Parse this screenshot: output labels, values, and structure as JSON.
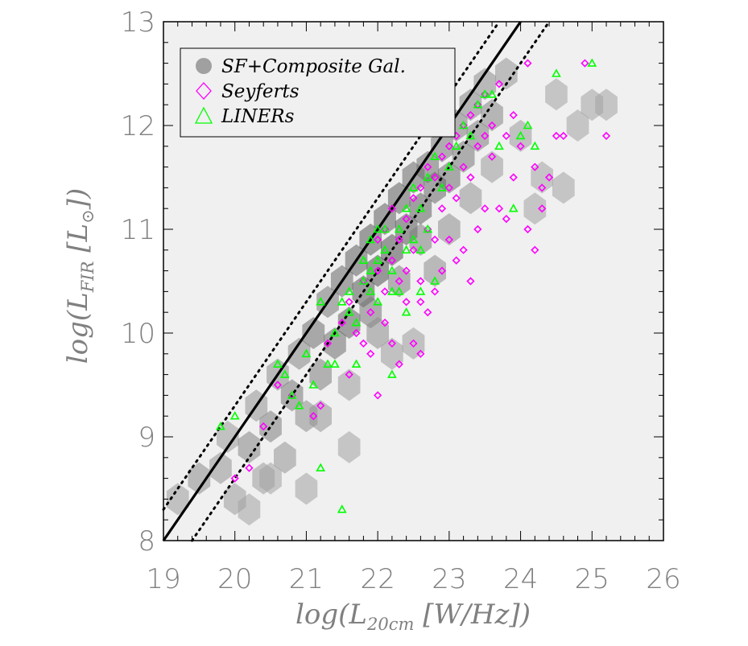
{
  "chart_data": {
    "type": "scatter",
    "xlabel": {
      "main": "log(L",
      "sub": "20cm",
      "rest": " [W/Hz])"
    },
    "ylabel": {
      "main": "log(L",
      "sub": "FIR",
      "rest": " [L",
      "sym": "⊙",
      "end": "])"
    },
    "xlim": [
      19,
      26
    ],
    "ylim": [
      8,
      13
    ],
    "x_ticks": [
      "19",
      "20",
      "21",
      "22",
      "23",
      "24",
      "25",
      "26"
    ],
    "y_ticks": [
      "8",
      "9",
      "10",
      "11",
      "12",
      "13"
    ],
    "grid": false,
    "legend_position": "top-left",
    "legend": [
      {
        "label": "SF+Composite Gal.",
        "marker": "filled-circle",
        "color": "#a0a0a0"
      },
      {
        "label": "Seyferts",
        "marker": "open-diamond",
        "color": "#ff00ff"
      },
      {
        "label": "LINERs",
        "marker": "open-triangle",
        "color": "#00ff00"
      }
    ],
    "fit_line": {
      "slope": 1.0,
      "intercept": -11.0,
      "style": "solid",
      "color": "#000000"
    },
    "scatter_lines": [
      {
        "slope": 1.0,
        "intercept": -10.7,
        "style": "dotted"
      },
      {
        "slope": 1.0,
        "intercept": -11.4,
        "style": "dotted"
      }
    ],
    "density_cells": [
      [
        19.2,
        8.4,
        0.3
      ],
      [
        19.5,
        8.6,
        0.4
      ],
      [
        19.8,
        8.7,
        0.35
      ],
      [
        19.9,
        9.0,
        0.3
      ],
      [
        20.0,
        8.4,
        0.3
      ],
      [
        20.2,
        8.9,
        0.45
      ],
      [
        20.3,
        9.3,
        0.35
      ],
      [
        20.4,
        8.6,
        0.3
      ],
      [
        20.5,
        9.1,
        0.5
      ],
      [
        20.6,
        9.6,
        0.4
      ],
      [
        20.7,
        8.8,
        0.35
      ],
      [
        20.8,
        9.4,
        0.55
      ],
      [
        20.9,
        9.8,
        0.45
      ],
      [
        21.0,
        9.2,
        0.4
      ],
      [
        21.1,
        10.0,
        0.6
      ],
      [
        21.2,
        9.6,
        0.5
      ],
      [
        21.3,
        10.3,
        0.55
      ],
      [
        21.4,
        9.9,
        0.6
      ],
      [
        21.5,
        10.5,
        0.65
      ],
      [
        21.6,
        10.1,
        0.7
      ],
      [
        21.7,
        10.7,
        0.7
      ],
      [
        21.8,
        10.4,
        0.75
      ],
      [
        21.9,
        10.9,
        0.75
      ],
      [
        22.0,
        10.6,
        0.8
      ],
      [
        22.1,
        11.1,
        0.7
      ],
      [
        22.2,
        10.8,
        0.8
      ],
      [
        22.3,
        11.3,
        0.7
      ],
      [
        22.4,
        11.0,
        0.75
      ],
      [
        22.5,
        11.5,
        0.65
      ],
      [
        22.6,
        11.2,
        0.7
      ],
      [
        22.7,
        11.6,
        0.6
      ],
      [
        22.8,
        11.4,
        0.65
      ],
      [
        22.9,
        11.8,
        0.55
      ],
      [
        23.0,
        11.5,
        0.6
      ],
      [
        23.1,
        12.0,
        0.5
      ],
      [
        23.2,
        11.7,
        0.55
      ],
      [
        23.3,
        12.2,
        0.45
      ],
      [
        23.4,
        11.9,
        0.5
      ],
      [
        23.5,
        12.4,
        0.4
      ],
      [
        23.6,
        12.1,
        0.45
      ],
      [
        23.8,
        12.5,
        0.35
      ],
      [
        21.9,
        10.2,
        0.55
      ],
      [
        22.3,
        10.5,
        0.5
      ],
      [
        22.6,
        10.9,
        0.5
      ],
      [
        21.2,
        9.2,
        0.35
      ],
      [
        22.8,
        10.6,
        0.4
      ],
      [
        23.0,
        11.0,
        0.4
      ],
      [
        23.3,
        11.3,
        0.35
      ],
      [
        22.0,
        10.0,
        0.4
      ],
      [
        21.6,
        9.5,
        0.3
      ],
      [
        23.6,
        11.6,
        0.3
      ],
      [
        24.0,
        11.9,
        0.3
      ],
      [
        20.2,
        8.3,
        0.25
      ],
      [
        24.3,
        11.5,
        0.25
      ],
      [
        24.8,
        12.0,
        0.25
      ],
      [
        25.0,
        12.2,
        0.25
      ],
      [
        24.5,
        12.3,
        0.25
      ],
      [
        22.2,
        9.8,
        0.3
      ],
      [
        21.0,
        8.5,
        0.25
      ],
      [
        24.2,
        11.2,
        0.25
      ],
      [
        24.6,
        11.4,
        0.25
      ],
      [
        25.2,
        12.2,
        0.25
      ],
      [
        21.6,
        8.9,
        0.25
      ],
      [
        22.5,
        9.9,
        0.3
      ],
      [
        20.5,
        8.6,
        0.25
      ]
    ],
    "seyferts": [
      [
        20.0,
        8.6
      ],
      [
        20.2,
        8.7
      ],
      [
        20.4,
        9.1
      ],
      [
        20.6,
        9.5
      ],
      [
        20.8,
        9.4
      ],
      [
        21.1,
        9.2
      ],
      [
        21.2,
        9.3
      ],
      [
        21.3,
        9.9
      ],
      [
        21.5,
        10.1
      ],
      [
        21.6,
        10.3
      ],
      [
        21.7,
        10.0
      ],
      [
        21.8,
        10.5
      ],
      [
        21.9,
        10.2
      ],
      [
        22.0,
        10.6
      ],
      [
        22.0,
        10.9
      ],
      [
        22.1,
        10.4
      ],
      [
        22.1,
        11.0
      ],
      [
        22.2,
        10.7
      ],
      [
        22.2,
        11.2
      ],
      [
        22.3,
        10.5
      ],
      [
        22.3,
        10.9
      ],
      [
        22.4,
        11.1
      ],
      [
        22.4,
        10.6
      ],
      [
        22.5,
        11.3
      ],
      [
        22.5,
        10.8
      ],
      [
        22.6,
        11.4
      ],
      [
        22.6,
        10.3
      ],
      [
        22.7,
        11.0
      ],
      [
        22.7,
        11.6
      ],
      [
        22.8,
        10.9
      ],
      [
        22.8,
        11.5
      ],
      [
        22.9,
        11.7
      ],
      [
        22.9,
        11.2
      ],
      [
        23.0,
        11.8
      ],
      [
        23.0,
        11.4
      ],
      [
        23.1,
        11.9
      ],
      [
        23.1,
        11.3
      ],
      [
        23.2,
        12.0
      ],
      [
        23.2,
        11.6
      ],
      [
        23.3,
        12.1
      ],
      [
        23.3,
        11.5
      ],
      [
        23.4,
        11.8
      ],
      [
        23.4,
        12.2
      ],
      [
        23.5,
        11.9
      ],
      [
        23.5,
        12.3
      ],
      [
        23.6,
        12.0
      ],
      [
        23.6,
        11.7
      ],
      [
        23.7,
        12.4
      ],
      [
        23.8,
        11.9
      ],
      [
        23.9,
        12.1
      ],
      [
        24.0,
        11.8
      ],
      [
        24.1,
        12.6
      ],
      [
        24.2,
        11.6
      ],
      [
        24.3,
        11.4
      ],
      [
        24.4,
        11.5
      ],
      [
        24.5,
        11.9
      ],
      [
        24.6,
        11.9
      ],
      [
        24.9,
        12.6
      ],
      [
        25.2,
        11.9
      ],
      [
        24.3,
        11.2
      ],
      [
        23.9,
        11.5
      ],
      [
        23.7,
        11.2
      ],
      [
        23.4,
        11.0
      ],
      [
        23.2,
        10.8
      ],
      [
        22.9,
        10.6
      ],
      [
        22.7,
        10.2
      ],
      [
        22.5,
        9.9
      ],
      [
        22.3,
        9.7
      ],
      [
        22.0,
        9.4
      ],
      [
        21.8,
        9.9
      ],
      [
        22.1,
        10.1
      ],
      [
        22.4,
        10.3
      ],
      [
        22.8,
        10.4
      ],
      [
        23.1,
        10.7
      ],
      [
        23.5,
        11.2
      ],
      [
        23.8,
        11.1
      ],
      [
        24.1,
        11.0
      ],
      [
        22.6,
        9.8
      ],
      [
        24.2,
        10.8
      ],
      [
        23.3,
        10.5
      ],
      [
        21.6,
        9.6
      ],
      [
        21.9,
        9.8
      ],
      [
        22.2,
        9.9
      ],
      [
        22.6,
        10.5
      ],
      [
        23.0,
        10.9
      ]
    ],
    "liners": [
      [
        19.8,
        9.1
      ],
      [
        20.0,
        9.2
      ],
      [
        20.6,
        9.7
      ],
      [
        20.7,
        9.6
      ],
      [
        20.8,
        9.4
      ],
      [
        20.9,
        9.3
      ],
      [
        21.0,
        9.8
      ],
      [
        21.1,
        9.5
      ],
      [
        21.2,
        10.3
      ],
      [
        21.2,
        8.7
      ],
      [
        21.3,
        9.7
      ],
      [
        21.4,
        10.0
      ],
      [
        21.5,
        10.3
      ],
      [
        21.5,
        8.3
      ],
      [
        21.6,
        10.2
      ],
      [
        21.7,
        10.1
      ],
      [
        21.7,
        9.7
      ],
      [
        21.8,
        10.5
      ],
      [
        21.8,
        10.7
      ],
      [
        21.9,
        10.4
      ],
      [
        21.9,
        10.9
      ],
      [
        22.0,
        10.7
      ],
      [
        22.0,
        10.3
      ],
      [
        22.1,
        10.8
      ],
      [
        22.1,
        11.0
      ],
      [
        22.2,
        9.6
      ],
      [
        22.2,
        10.6
      ],
      [
        22.3,
        11.0
      ],
      [
        22.3,
        10.4
      ],
      [
        22.4,
        11.2
      ],
      [
        22.4,
        10.8
      ],
      [
        22.5,
        11.4
      ],
      [
        22.5,
        10.9
      ],
      [
        22.6,
        11.2
      ],
      [
        22.6,
        10.8
      ],
      [
        22.7,
        11.5
      ],
      [
        22.7,
        11.0
      ],
      [
        22.8,
        11.7
      ],
      [
        22.9,
        11.4
      ],
      [
        23.0,
        11.6
      ],
      [
        23.2,
        12.0
      ],
      [
        23.3,
        11.9
      ],
      [
        23.4,
        12.2
      ],
      [
        23.5,
        12.3
      ],
      [
        23.6,
        12.3
      ],
      [
        23.7,
        11.8
      ],
      [
        23.9,
        11.2
      ],
      [
        24.0,
        11.9
      ],
      [
        24.1,
        12.0
      ],
      [
        24.2,
        11.8
      ],
      [
        24.5,
        12.5
      ],
      [
        25.0,
        12.6
      ],
      [
        22.6,
        10.4
      ],
      [
        21.6,
        10.4
      ],
      [
        22.0,
        11.0
      ],
      [
        22.8,
        10.5
      ],
      [
        23.1,
        11.8
      ],
      [
        21.4,
        9.7
      ],
      [
        22.4,
        10.2
      ],
      [
        21.9,
        10.6
      ],
      [
        22.2,
        10.4
      ]
    ]
  }
}
